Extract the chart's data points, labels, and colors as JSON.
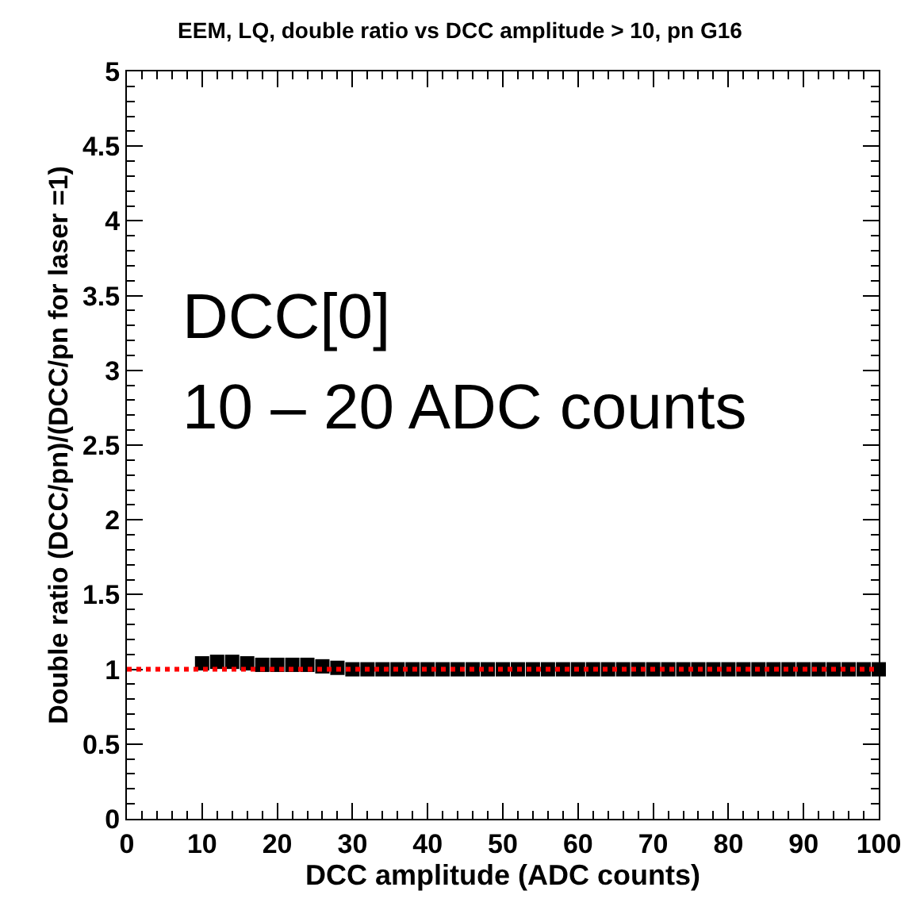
{
  "chart_data": {
    "type": "scatter",
    "title": "EEM, LQ, double ratio vs DCC amplitude > 10, pn G16",
    "xlabel": "DCC amplitude (ADC counts)",
    "ylabel": "Double ratio (DCC/pn)/(DCC/pn for laser =1)",
    "annotations": [
      "DCC[0]",
      "10 – 20 ADC counts"
    ],
    "x": [
      10,
      12,
      14,
      16,
      18,
      20,
      22,
      24,
      26,
      28,
      30,
      32,
      34,
      36,
      38,
      40,
      42,
      44,
      46,
      48,
      50,
      52,
      54,
      56,
      58,
      60,
      62,
      64,
      66,
      68,
      70,
      72,
      74,
      76,
      78,
      80,
      82,
      84,
      86,
      88,
      90,
      92,
      94,
      96,
      98,
      100
    ],
    "series": [
      {
        "color": "#000000",
        "values": [
          1.04,
          1.05,
          1.05,
          1.04,
          1.03,
          1.03,
          1.03,
          1.03,
          1.02,
          1.01,
          1.0,
          1.0,
          1.0,
          1.0,
          1.0,
          1.0,
          1.0,
          1.0,
          1.0,
          1.0,
          1.0,
          1.0,
          1.0,
          1.0,
          1.0,
          1.0,
          1.0,
          1.0,
          1.0,
          1.0,
          1.0,
          1.0,
          1.0,
          1.0,
          1.0,
          1.0,
          1.0,
          1.0,
          1.0,
          1.0,
          1.0,
          1.0,
          1.0,
          1.0,
          1.0,
          1.0
        ]
      }
    ],
    "marker": "square",
    "ref_lines": [
      {
        "axis": "y",
        "value": 1,
        "color": "#ff0000",
        "line_style": "dotted"
      }
    ],
    "xlim": [
      0,
      100
    ],
    "xticks": [
      0,
      10,
      20,
      30,
      40,
      50,
      60,
      70,
      80,
      90,
      100
    ],
    "ylim": [
      0,
      5
    ],
    "yticks": [
      0,
      0.5,
      1,
      1.5,
      2,
      2.5,
      3,
      3.5,
      4,
      4.5,
      5
    ]
  }
}
